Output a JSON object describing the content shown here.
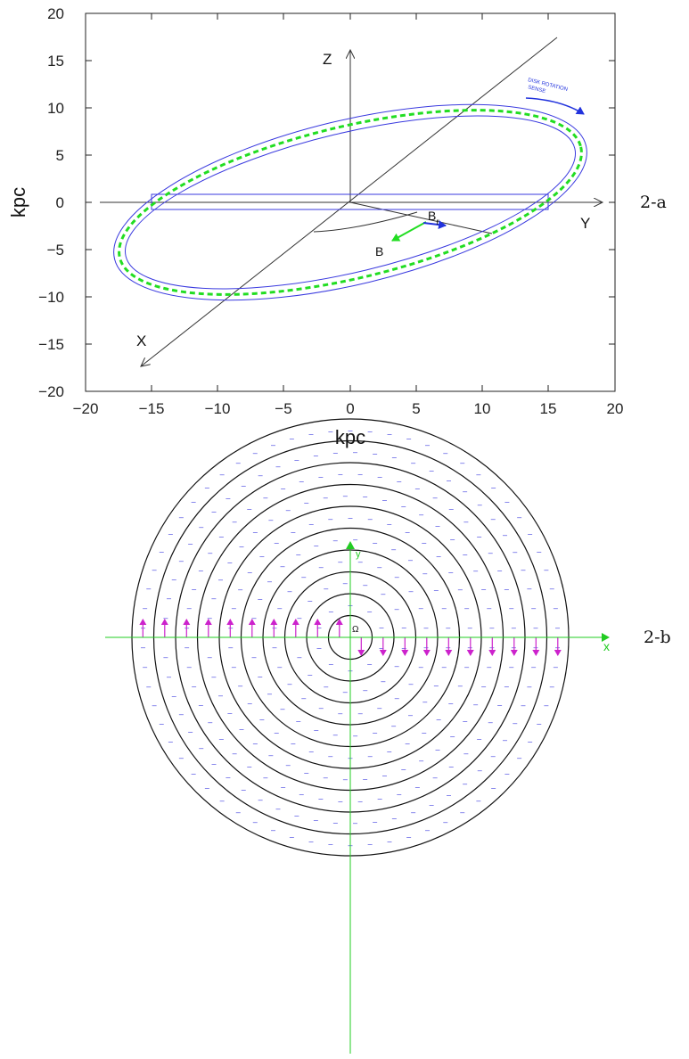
{
  "fig_a": {
    "panel_label": "2-a",
    "xlabel": "kpc",
    "ylabel": "kpc",
    "xticks": [
      "−20",
      "−15",
      "−10",
      "−5",
      "0",
      "5",
      "10",
      "15",
      "20"
    ],
    "yticks": [
      "20",
      "15",
      "10",
      "5",
      "0",
      "−5",
      "−10",
      "−15",
      "−20"
    ],
    "axis_z": "Z",
    "axis_y": "Y",
    "axis_x": "X",
    "vec_b": "B",
    "vec_br": "B",
    "vec_br_sub": "r",
    "rotation_note_line1": "DISK ROTATION",
    "rotation_note_line2": "SENSE",
    "colors": {
      "ring": "#3a3adf",
      "dashed": "#22dd22",
      "vector_b": "#22dd22",
      "vector_br": "#2233dd"
    }
  },
  "fig_b": {
    "panel_label": "2-b",
    "axis_x": "x",
    "axis_y": "y",
    "center": "Ω",
    "dash_glyph": "–",
    "colors": {
      "axes": "#22cc22",
      "circles": "#111111",
      "dashes": "#3a3adf",
      "arrows": "#cc22cc"
    }
  }
}
